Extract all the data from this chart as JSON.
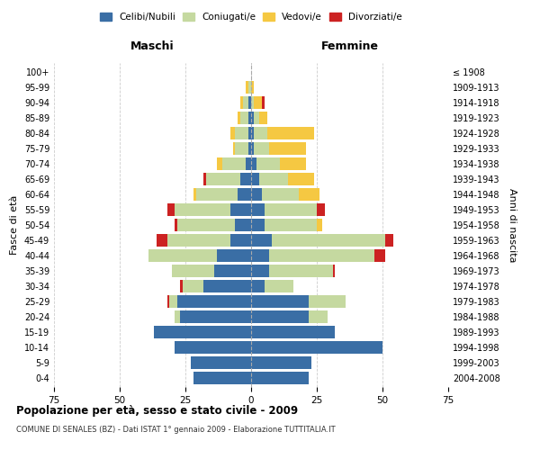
{
  "age_groups": [
    "0-4",
    "5-9",
    "10-14",
    "15-19",
    "20-24",
    "25-29",
    "30-34",
    "35-39",
    "40-44",
    "45-49",
    "50-54",
    "55-59",
    "60-64",
    "65-69",
    "70-74",
    "75-79",
    "80-84",
    "85-89",
    "90-94",
    "95-99",
    "100+"
  ],
  "birth_years": [
    "2004-2008",
    "1999-2003",
    "1994-1998",
    "1989-1993",
    "1984-1988",
    "1979-1983",
    "1974-1978",
    "1969-1973",
    "1964-1968",
    "1959-1963",
    "1954-1958",
    "1949-1953",
    "1944-1948",
    "1939-1943",
    "1934-1938",
    "1929-1933",
    "1924-1928",
    "1919-1923",
    "1914-1918",
    "1909-1913",
    "≤ 1908"
  ],
  "colors": {
    "celibi": "#3a6ea5",
    "coniugati": "#c5d9a0",
    "vedovi": "#f5c842",
    "divorziati": "#cc2222"
  },
  "maschi": {
    "celibi": [
      22,
      23,
      29,
      37,
      27,
      28,
      18,
      14,
      13,
      8,
      6,
      8,
      5,
      4,
      2,
      1,
      1,
      1,
      1,
      0,
      0
    ],
    "coniugati": [
      0,
      0,
      0,
      0,
      2,
      3,
      8,
      16,
      26,
      24,
      22,
      21,
      16,
      13,
      9,
      5,
      5,
      3,
      2,
      1,
      0
    ],
    "vedovi": [
      0,
      0,
      0,
      0,
      0,
      0,
      0,
      0,
      0,
      0,
      0,
      0,
      1,
      0,
      2,
      1,
      2,
      1,
      1,
      1,
      0
    ],
    "divorziati": [
      0,
      0,
      0,
      0,
      0,
      1,
      1,
      0,
      0,
      4,
      1,
      3,
      0,
      1,
      0,
      0,
      0,
      0,
      0,
      0,
      0
    ]
  },
  "femmine": {
    "celibi": [
      22,
      23,
      50,
      32,
      22,
      22,
      5,
      7,
      7,
      8,
      5,
      5,
      4,
      3,
      2,
      1,
      1,
      1,
      0,
      0,
      0
    ],
    "coniugati": [
      0,
      0,
      0,
      0,
      7,
      14,
      11,
      24,
      40,
      43,
      20,
      20,
      14,
      11,
      9,
      6,
      5,
      2,
      1,
      0,
      0
    ],
    "vedovi": [
      0,
      0,
      0,
      0,
      0,
      0,
      0,
      0,
      0,
      0,
      2,
      0,
      8,
      10,
      10,
      14,
      18,
      3,
      3,
      1,
      0
    ],
    "divorziati": [
      0,
      0,
      0,
      0,
      0,
      0,
      0,
      1,
      4,
      3,
      0,
      3,
      0,
      0,
      0,
      0,
      0,
      0,
      1,
      0,
      0
    ]
  },
  "xlim": 75,
  "title": "Popolazione per età, sesso e stato civile - 2009",
  "subtitle": "COMUNE DI SENALES (BZ) - Dati ISTAT 1° gennaio 2009 - Elaborazione TUTTITALIA.IT",
  "ylabel_left": "Fasce di età",
  "ylabel_right": "Anni di nascita",
  "xlabel_left": "Maschi",
  "xlabel_right": "Femmine",
  "legend_labels": [
    "Celibi/Nubili",
    "Coniugati/e",
    "Vedovi/e",
    "Divorziati/e"
  ],
  "background": "#ffffff",
  "grid_color": "#cccccc"
}
